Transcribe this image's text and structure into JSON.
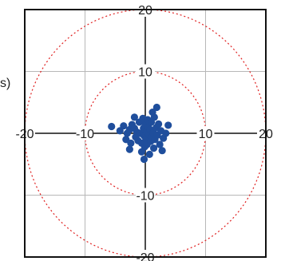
{
  "y_axis_label_fragment": "s)",
  "chart_data": {
    "type": "scatter",
    "title": "",
    "xlabel": "",
    "ylabel": "",
    "xlim": [
      -20,
      20
    ],
    "ylim": [
      -20,
      20
    ],
    "grid": true,
    "rings": [
      10,
      20
    ],
    "x_ticks": [
      -20,
      -10,
      10,
      20
    ],
    "y_ticks": [
      20,
      10,
      -10,
      -20
    ],
    "x_tick_labels": [
      "-20",
      "-10",
      "10",
      "20"
    ],
    "y_tick_labels": [
      "20",
      "10",
      "-10",
      "-20"
    ],
    "colors": {
      "points": "#1f4e9c",
      "rings": "#e02020",
      "grid": "#b8b8b8",
      "axes": "#111111"
    },
    "series": [
      {
        "points": [
          [
            -5.6,
            1.1
          ],
          [
            -4.2,
            0.4
          ],
          [
            -3.6,
            1.2
          ],
          [
            -3.0,
            0.0
          ],
          [
            -2.6,
            0.6
          ],
          [
            -3.2,
            -1.0
          ],
          [
            -2.4,
            -1.6
          ],
          [
            -2.6,
            -2.6
          ],
          [
            -2.2,
            1.4
          ],
          [
            -1.8,
            0.8
          ],
          [
            -1.6,
            -0.6
          ],
          [
            -1.4,
            0.2
          ],
          [
            -1.2,
            -1.2
          ],
          [
            -1.0,
            1.8
          ],
          [
            -0.8,
            0.0
          ],
          [
            -0.6,
            -1.6
          ],
          [
            -0.4,
            2.4
          ],
          [
            -0.3,
            0.8
          ],
          [
            -0.2,
            -0.4
          ],
          [
            -0.1,
            -2.2
          ],
          [
            0.0,
            1.4
          ],
          [
            0.1,
            -0.9
          ],
          [
            0.2,
            0.3
          ],
          [
            0.3,
            -1.8
          ],
          [
            0.4,
            2.2
          ],
          [
            0.5,
            1.0
          ],
          [
            0.6,
            -0.2
          ],
          [
            0.7,
            -3.4
          ],
          [
            0.8,
            0.6
          ],
          [
            0.9,
            -1.3
          ],
          [
            1.0,
            1.8
          ],
          [
            1.1,
            -0.6
          ],
          [
            1.3,
            0.1
          ],
          [
            1.4,
            -2.4
          ],
          [
            1.5,
            2.6
          ],
          [
            1.6,
            -1.0
          ],
          [
            1.8,
            0.9
          ],
          [
            2.0,
            -0.3
          ],
          [
            2.2,
            1.5
          ],
          [
            2.4,
            -1.8
          ],
          [
            2.6,
            0.4
          ],
          [
            3.0,
            -0.8
          ],
          [
            3.4,
            0.0
          ],
          [
            1.9,
            4.2
          ],
          [
            -0.2,
            -4.2
          ],
          [
            -0.6,
            -3.0
          ],
          [
            1.2,
            3.4
          ],
          [
            -1.8,
            2.6
          ],
          [
            2.8,
            -2.8
          ],
          [
            3.8,
            1.3
          ]
        ]
      }
    ]
  }
}
